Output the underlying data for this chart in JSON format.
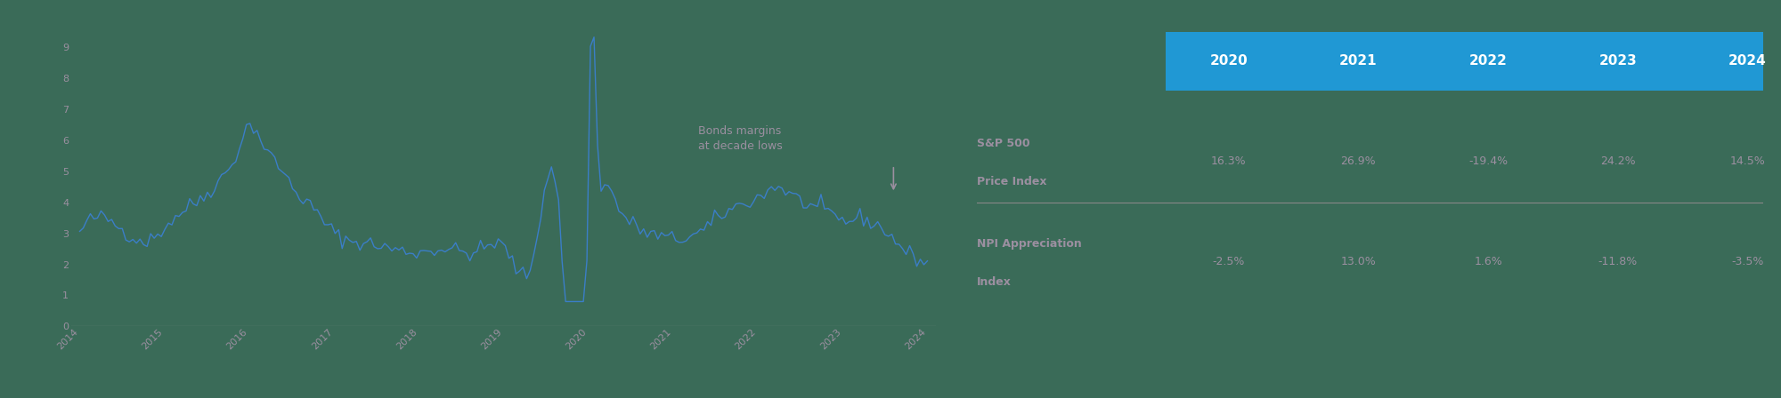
{
  "background_color": "#3a6b58",
  "line_color": "#3a7ec8",
  "annotation_color": "#9b8fa0",
  "axis_label_color": "#9b8fa0",
  "grid_color": "#b0b0b0",
  "table_header_bg": "#2098d4",
  "table_header_text": "#ffffff",
  "table_row_label_color": "#9b8fa0",
  "table_value_color": "#9b8fa0",
  "table_divider_color": "#888888",
  "years_header": [
    "2020",
    "2021",
    "2022",
    "2023",
    "2024"
  ],
  "row1_label_line1": "S&P 500",
  "row1_label_line2": "Price Index",
  "row1_values": [
    "16.3%",
    "26.9%",
    "-19.4%",
    "24.2%",
    "14.5%"
  ],
  "row2_label_line1": "NPI Appreciation",
  "row2_label_line2": "Index",
  "row2_values": [
    "-2.5%",
    "13.0%",
    "1.6%",
    "-11.8%",
    "-3.5%"
  ],
  "annotation_line1": "Bonds margins",
  "annotation_line2": "at decade lows",
  "ylim": [
    0,
    9.5
  ],
  "yticks": [
    0,
    1,
    2,
    3,
    4,
    5,
    6,
    7,
    8,
    9
  ],
  "x_start_year": 2014,
  "x_end_year": 2024
}
